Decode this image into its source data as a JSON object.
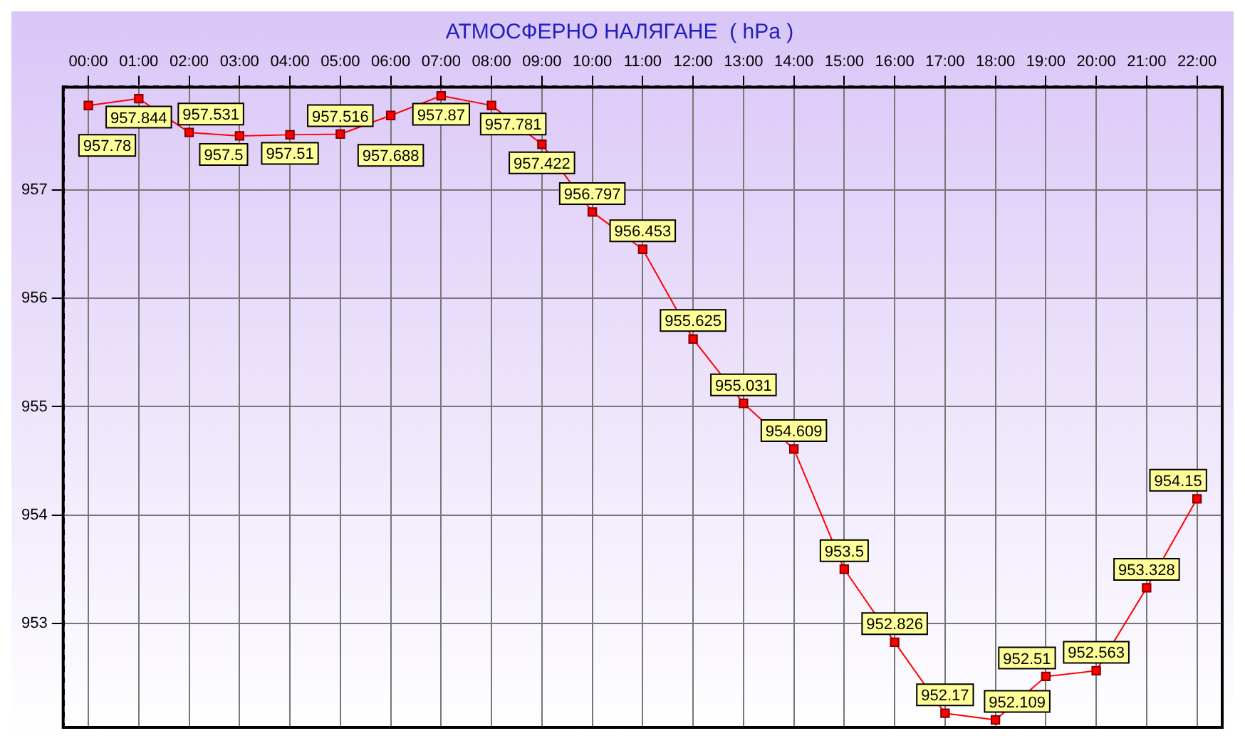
{
  "chart_data": {
    "type": "line",
    "title": "АТМОСФЕРНО НАЛЯГАНЕ  ( hPa )",
    "categories": [
      "00:00",
      "01:00",
      "02:00",
      "03:00",
      "04:00",
      "05:00",
      "06:00",
      "07:00",
      "08:00",
      "09:00",
      "10:00",
      "11:00",
      "12:00",
      "13:00",
      "14:00",
      "15:00",
      "16:00",
      "17:00",
      "18:00",
      "19:00",
      "20:00",
      "21:00",
      "22:00"
    ],
    "series": [
      {
        "color": "#ff0000",
        "values": [
          957.78,
          957.844,
          957.531,
          957.5,
          957.51,
          957.516,
          957.688,
          957.87,
          957.781,
          957.422,
          956.797,
          956.453,
          955.625,
          955.031,
          954.609,
          953.5,
          952.826,
          952.17,
          952.109,
          952.51,
          952.563,
          953.328,
          954.15
        ]
      }
    ],
    "ylim": [
      952.04,
      957.95
    ],
    "yticks": [
      953,
      954,
      955,
      956,
      957
    ],
    "grid": true,
    "legend": false,
    "marker": "square",
    "line_style": "solid",
    "data_labels": true
  }
}
